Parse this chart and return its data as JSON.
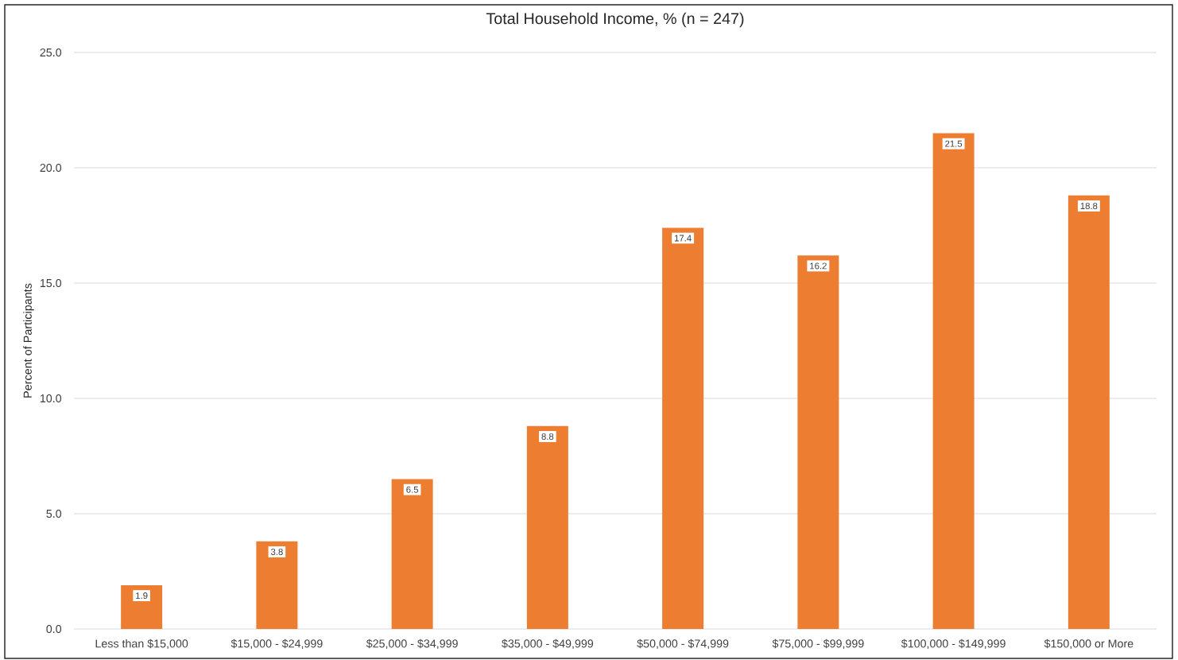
{
  "chart_data": {
    "type": "bar",
    "title": "Total Household Income, % (n = 247)",
    "ylabel": "Percent of Participants",
    "categories": [
      "Less than $15,000",
      "$15,000 - $24,999",
      "$25,000 - $34,999",
      "$35,000 - $49,999",
      "$50,000 - $74,999",
      "$75,000 - $99,999",
      "$100,000 - $149,999",
      "$150,000 or More"
    ],
    "values": [
      1.9,
      3.8,
      6.5,
      8.8,
      17.4,
      16.2,
      21.5,
      18.8
    ],
    "color": "#ed7d31",
    "ylim": [
      0,
      25
    ],
    "yticks": [
      {
        "value": 0,
        "label": "0.0"
      },
      {
        "value": 5,
        "label": "5.0"
      },
      {
        "value": 10,
        "label": "10.0"
      },
      {
        "value": 15,
        "label": "15.0"
      },
      {
        "value": 20,
        "label": "20.0"
      },
      {
        "value": 25,
        "label": "25.0"
      }
    ],
    "grid": "y",
    "data_labels": true
  }
}
